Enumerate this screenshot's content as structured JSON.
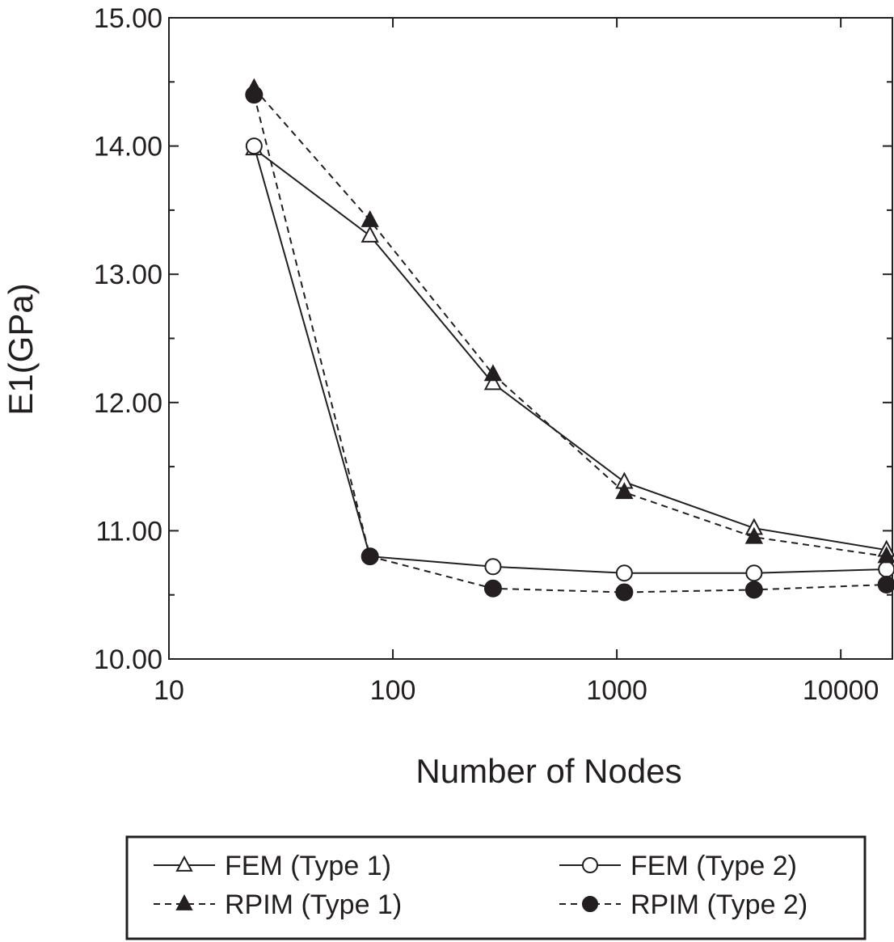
{
  "chart_data": {
    "type": "line",
    "xscale": "log",
    "xlabel": "Number of Nodes",
    "ylabel": "E1(GPa)",
    "xlim": [
      10,
      17000
    ],
    "ylim": [
      10,
      15
    ],
    "xticks": [
      "10",
      "100",
      "1000",
      "10000"
    ],
    "yticks": [
      "10.00",
      "11.00",
      "12.00",
      "13.00",
      "14.00",
      "15.00"
    ],
    "legend_position": "bottom",
    "series": [
      {
        "name": "FEM (Type 1)",
        "marker": "open-triangle",
        "line": "solid",
        "color": "#231f20",
        "x": [
          24,
          79,
          280,
          1080,
          4100,
          16000
        ],
        "y": [
          13.98,
          13.3,
          12.15,
          11.38,
          11.02,
          10.85
        ]
      },
      {
        "name": "FEM (Type 2)",
        "marker": "open-circle",
        "line": "solid",
        "color": "#231f20",
        "x": [
          24,
          79,
          280,
          1080,
          4100,
          16000
        ],
        "y": [
          14.0,
          10.8,
          10.72,
          10.67,
          10.67,
          10.7
        ]
      },
      {
        "name": "RPIM (Type 1)",
        "marker": "filled-triangle",
        "line": "dashed",
        "color": "#231f20",
        "x": [
          24,
          79,
          280,
          1080,
          4100,
          16000
        ],
        "y": [
          14.45,
          13.42,
          12.22,
          11.3,
          10.95,
          10.8
        ]
      },
      {
        "name": "RPIM (Type 2)",
        "marker": "filled-circle",
        "line": "dashed",
        "color": "#231f20",
        "x": [
          24,
          79,
          280,
          1080,
          4100,
          16000
        ],
        "y": [
          14.4,
          10.8,
          10.55,
          10.52,
          10.54,
          10.58
        ]
      }
    ]
  }
}
